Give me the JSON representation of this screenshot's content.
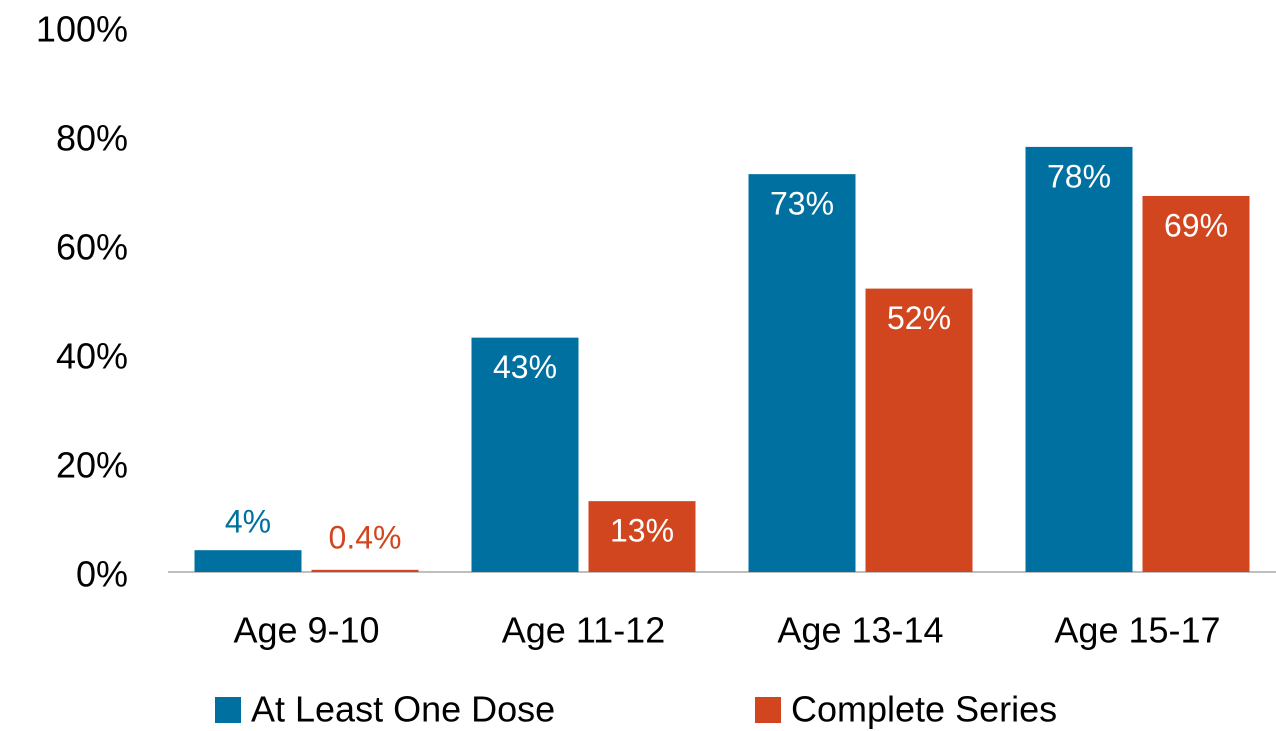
{
  "chart_data": {
    "type": "bar",
    "categories": [
      "Age 9-10",
      "Age 11-12",
      "Age 13-14",
      "Age 15-17"
    ],
    "series": [
      {
        "name": "At Least One Dose",
        "color": "#0070a0",
        "values": [
          4,
          43,
          73,
          78
        ],
        "value_labels": [
          "4%",
          "43%",
          "73%",
          "78%"
        ]
      },
      {
        "name": "Complete Series",
        "color": "#d2461f",
        "values": [
          0.4,
          13,
          52,
          69
        ],
        "value_labels": [
          "0.4%",
          "13%",
          "52%",
          "69%"
        ]
      }
    ],
    "ylim": [
      0,
      100
    ],
    "yticks": [
      {
        "value": 0,
        "label": "0%"
      },
      {
        "value": 20,
        "label": "20%"
      },
      {
        "value": 40,
        "label": "40%"
      },
      {
        "value": 60,
        "label": "60%"
      },
      {
        "value": 80,
        "label": "80%"
      },
      {
        "value": 100,
        "label": "100%"
      }
    ],
    "legend": "bottom"
  }
}
